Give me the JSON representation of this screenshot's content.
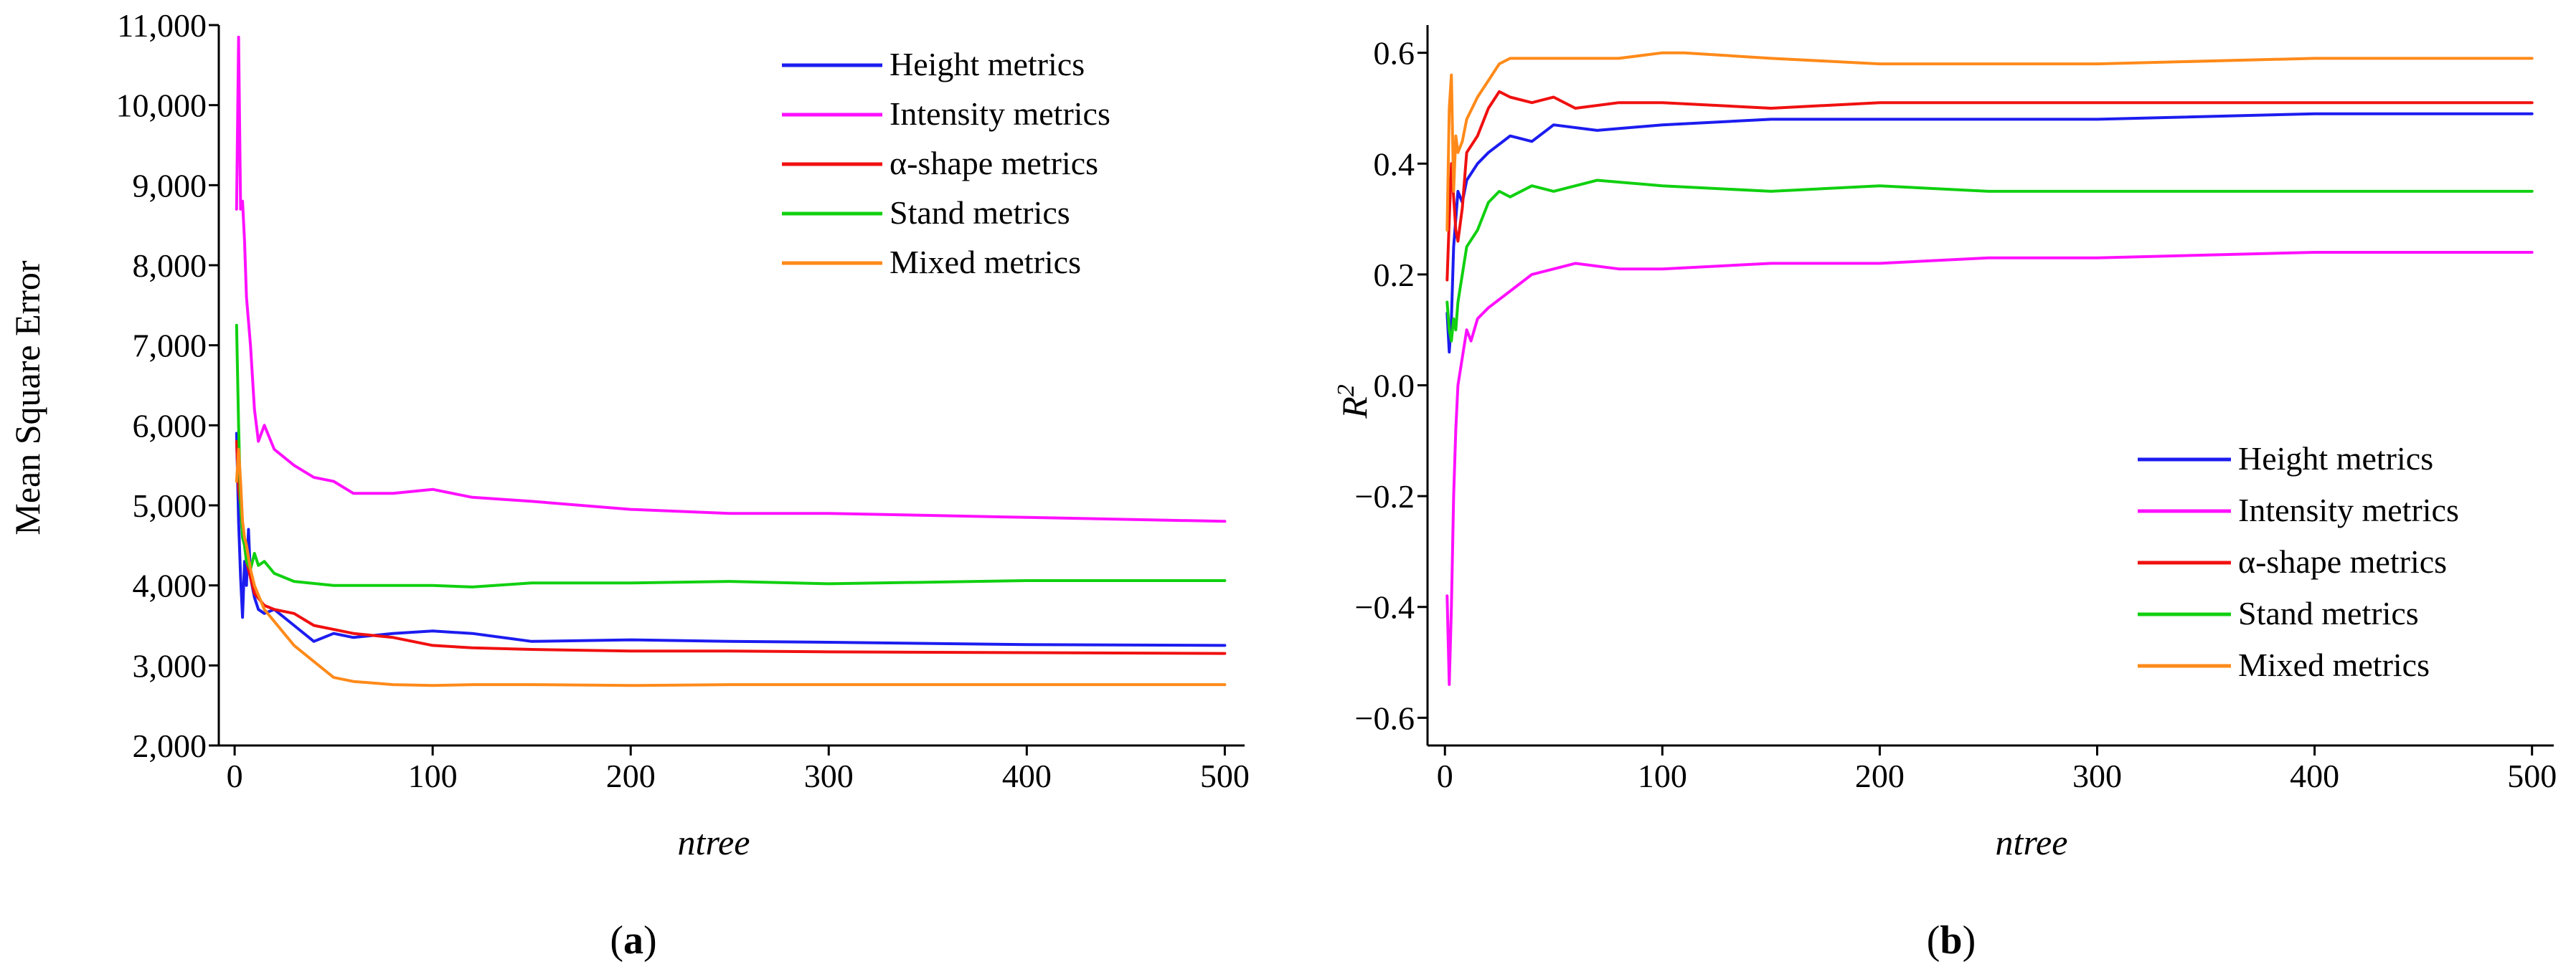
{
  "chart_data": [
    {
      "type": "line",
      "panel_label": "a",
      "title": "",
      "xlabel": "ntree",
      "ylabel": "Mean Square Error",
      "xlim": [
        -8,
        510
      ],
      "ylim": [
        2000,
        11000
      ],
      "x_ticks": [
        0,
        100,
        200,
        300,
        400,
        500
      ],
      "x_tick_labels": [
        "0",
        "100",
        "200",
        "300",
        "400",
        "500"
      ],
      "y_ticks": [
        2000,
        3000,
        4000,
        5000,
        6000,
        7000,
        8000,
        9000,
        10000,
        11000
      ],
      "y_tick_labels": [
        "2,000",
        "3,000",
        "4,000",
        "5,000",
        "6,000",
        "7,000",
        "8,000",
        "9,000",
        "10,000",
        "11,000"
      ],
      "grid": false,
      "legend_position": "top-right",
      "series": [
        {
          "name": "Height metrics",
          "color": "#1c1cf0",
          "x": [
            1,
            2,
            3,
            4,
            5,
            6,
            7,
            8,
            10,
            12,
            15,
            20,
            30,
            40,
            50,
            60,
            80,
            100,
            120,
            150,
            200,
            250,
            300,
            400,
            500
          ],
          "values": [
            5900,
            4800,
            4100,
            3600,
            4300,
            4000,
            4700,
            4100,
            3850,
            3700,
            3650,
            3700,
            3500,
            3300,
            3400,
            3350,
            3400,
            3430,
            3400,
            3300,
            3320,
            3300,
            3290,
            3260,
            3250
          ]
        },
        {
          "name": "Intensity metrics",
          "color": "#ff10ff",
          "x": [
            1,
            2,
            3,
            4,
            5,
            6,
            8,
            10,
            12,
            15,
            20,
            30,
            40,
            50,
            60,
            80,
            100,
            120,
            150,
            200,
            250,
            300,
            400,
            500
          ],
          "values": [
            8700,
            10850,
            8700,
            8800,
            8300,
            7600,
            7000,
            6200,
            5800,
            6000,
            5700,
            5500,
            5350,
            5300,
            5150,
            5150,
            5200,
            5100,
            5050,
            4950,
            4900,
            4900,
            4850,
            4800
          ]
        },
        {
          "name": "α-shape metrics",
          "color": "#f01010",
          "x": [
            1,
            2,
            3,
            4,
            5,
            6,
            8,
            10,
            15,
            20,
            30,
            40,
            50,
            60,
            80,
            100,
            120,
            150,
            200,
            250,
            300,
            400,
            500
          ],
          "values": [
            5800,
            5200,
            5000,
            4600,
            4500,
            4300,
            4100,
            3900,
            3750,
            3700,
            3650,
            3500,
            3450,
            3400,
            3350,
            3250,
            3220,
            3200,
            3180,
            3180,
            3170,
            3160,
            3150
          ]
        },
        {
          "name": "Stand metrics",
          "color": "#10d010",
          "x": [
            1,
            2,
            3,
            4,
            5,
            6,
            8,
            10,
            12,
            15,
            20,
            30,
            50,
            80,
            100,
            120,
            150,
            200,
            250,
            300,
            400,
            500
          ],
          "values": [
            7250,
            6000,
            5000,
            4600,
            4500,
            4300,
            4200,
            4400,
            4250,
            4300,
            4150,
            4050,
            4000,
            4000,
            4000,
            3980,
            4030,
            4030,
            4050,
            4020,
            4060,
            4060
          ]
        },
        {
          "name": "Mixed metrics",
          "color": "#ff8a1a",
          "x": [
            1,
            2,
            3,
            4,
            5,
            6,
            8,
            10,
            15,
            20,
            30,
            40,
            50,
            60,
            80,
            100,
            120,
            150,
            200,
            250,
            300,
            400,
            500
          ],
          "values": [
            5300,
            5700,
            5300,
            4800,
            4600,
            4500,
            4200,
            4000,
            3700,
            3550,
            3250,
            3050,
            2850,
            2800,
            2760,
            2750,
            2760,
            2760,
            2750,
            2760,
            2760,
            2760,
            2760
          ]
        }
      ],
      "legend_entries": [
        "Height metrics",
        "Intensity metrics",
        "α-shape metrics",
        "Stand metrics",
        "Mixed metrics"
      ]
    },
    {
      "type": "line",
      "panel_label": "b",
      "title": "",
      "xlabel": "ntree",
      "ylabel": "R",
      "ylabel_superscript": "2",
      "xlim": [
        -8,
        510
      ],
      "ylim": [
        -0.65,
        0.65
      ],
      "x_ticks": [
        0,
        100,
        200,
        300,
        400,
        500
      ],
      "x_tick_labels": [
        "0",
        "100",
        "200",
        "300",
        "400",
        "500"
      ],
      "y_ticks": [
        -0.6,
        -0.4,
        -0.2,
        0.0,
        0.2,
        0.4,
        0.6
      ],
      "y_tick_labels": [
        "−0.6",
        "−0.4",
        "−0.2",
        "0.0",
        "0.2",
        "0.4",
        "0.6"
      ],
      "grid": false,
      "legend_position": "bottom-right",
      "series": [
        {
          "name": "Height metrics",
          "color": "#1c1cf0",
          "x": [
            1,
            2,
            3,
            4,
            5,
            6,
            8,
            10,
            15,
            20,
            30,
            40,
            50,
            70,
            100,
            150,
            200,
            250,
            300,
            400,
            500
          ],
          "values": [
            0.13,
            0.06,
            0.12,
            0.25,
            0.3,
            0.35,
            0.33,
            0.37,
            0.4,
            0.42,
            0.45,
            0.44,
            0.47,
            0.46,
            0.47,
            0.48,
            0.48,
            0.48,
            0.48,
            0.49,
            0.49
          ]
        },
        {
          "name": "Intensity metrics",
          "color": "#ff10ff",
          "x": [
            1,
            2,
            3,
            4,
            5,
            6,
            8,
            10,
            12,
            15,
            20,
            30,
            40,
            60,
            80,
            100,
            150,
            200,
            250,
            300,
            400,
            500
          ],
          "values": [
            -0.38,
            -0.54,
            -0.4,
            -0.2,
            -0.08,
            0.0,
            0.05,
            0.1,
            0.08,
            0.12,
            0.14,
            0.17,
            0.2,
            0.22,
            0.21,
            0.21,
            0.22,
            0.22,
            0.23,
            0.23,
            0.24,
            0.24
          ]
        },
        {
          "name": "α-shape metrics",
          "color": "#f01010",
          "x": [
            1,
            2,
            3,
            4,
            5,
            6,
            8,
            10,
            15,
            20,
            25,
            30,
            40,
            50,
            60,
            80,
            100,
            150,
            200,
            250,
            300,
            400,
            500
          ],
          "values": [
            0.19,
            0.3,
            0.4,
            0.34,
            0.28,
            0.26,
            0.32,
            0.42,
            0.45,
            0.5,
            0.53,
            0.52,
            0.51,
            0.52,
            0.5,
            0.51,
            0.51,
            0.5,
            0.51,
            0.51,
            0.51,
            0.51,
            0.51
          ]
        },
        {
          "name": "Stand metrics",
          "color": "#10d010",
          "x": [
            1,
            2,
            3,
            4,
            5,
            6,
            8,
            10,
            15,
            20,
            25,
            30,
            40,
            50,
            70,
            100,
            150,
            200,
            250,
            300,
            400,
            500
          ],
          "values": [
            0.15,
            0.1,
            0.08,
            0.12,
            0.1,
            0.15,
            0.2,
            0.25,
            0.28,
            0.33,
            0.35,
            0.34,
            0.36,
            0.35,
            0.37,
            0.36,
            0.35,
            0.36,
            0.35,
            0.35,
            0.35,
            0.35
          ]
        },
        {
          "name": "Mixed metrics",
          "color": "#ff8a1a",
          "x": [
            1,
            2,
            3,
            4,
            5,
            6,
            8,
            10,
            15,
            20,
            25,
            30,
            50,
            80,
            100,
            110,
            150,
            200,
            250,
            300,
            400,
            500
          ],
          "values": [
            0.28,
            0.5,
            0.56,
            0.35,
            0.45,
            0.42,
            0.44,
            0.48,
            0.52,
            0.55,
            0.58,
            0.59,
            0.59,
            0.59,
            0.6,
            0.6,
            0.59,
            0.58,
            0.58,
            0.58,
            0.59,
            0.59
          ]
        }
      ],
      "legend_entries": [
        "Height metrics",
        "Intensity metrics",
        "α-shape metrics",
        "Stand metrics",
        "Mixed metrics"
      ]
    }
  ]
}
